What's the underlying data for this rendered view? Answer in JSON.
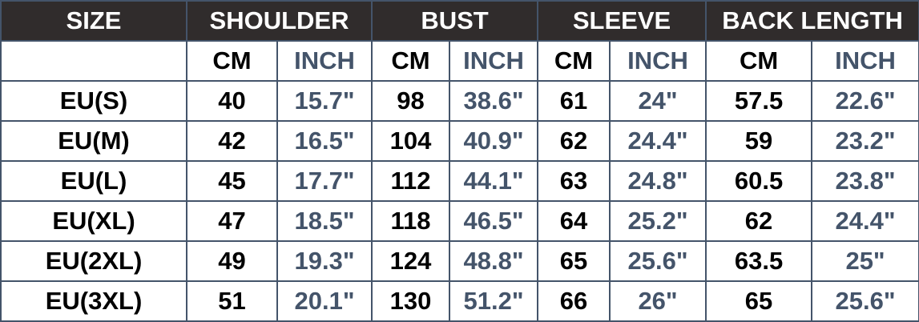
{
  "headers": [
    "SIZE",
    "SHOULDER",
    "BUST",
    "SLEEVE",
    "BACK LENGTH"
  ],
  "unit_labels": {
    "cm": "CM",
    "inch": "INCH"
  },
  "colors": {
    "header_bg": "#302c2c",
    "border": "#44546a",
    "inch_text": "#44546a"
  },
  "rows": [
    {
      "size": "EU(S)",
      "shoulder_cm": "40",
      "shoulder_in": "15.7\"",
      "bust_cm": "98",
      "bust_in": "38.6\"",
      "sleeve_cm": "61",
      "sleeve_in": "24\"",
      "back_cm": "57.5",
      "back_in": "22.6\""
    },
    {
      "size": "EU(M)",
      "shoulder_cm": "42",
      "shoulder_in": "16.5\"",
      "bust_cm": "104",
      "bust_in": "40.9\"",
      "sleeve_cm": "62",
      "sleeve_in": "24.4\"",
      "back_cm": "59",
      "back_in": "23.2\""
    },
    {
      "size": "EU(L)",
      "shoulder_cm": "45",
      "shoulder_in": "17.7\"",
      "bust_cm": "112",
      "bust_in": "44.1\"",
      "sleeve_cm": "63",
      "sleeve_in": "24.8\"",
      "back_cm": "60.5",
      "back_in": "23.8\""
    },
    {
      "size": "EU(XL)",
      "shoulder_cm": "47",
      "shoulder_in": "18.5\"",
      "bust_cm": "118",
      "bust_in": "46.5\"",
      "sleeve_cm": "64",
      "sleeve_in": "25.2\"",
      "back_cm": "62",
      "back_in": "24.4\""
    },
    {
      "size": "EU(2XL)",
      "shoulder_cm": "49",
      "shoulder_in": "19.3\"",
      "bust_cm": "124",
      "bust_in": "48.8\"",
      "sleeve_cm": "65",
      "sleeve_in": "25.6\"",
      "back_cm": "63.5",
      "back_in": "25\""
    },
    {
      "size": "EU(3XL)",
      "shoulder_cm": "51",
      "shoulder_in": "20.1\"",
      "bust_cm": "130",
      "bust_in": "51.2\"",
      "sleeve_cm": "66",
      "sleeve_in": "26\"",
      "back_cm": "65",
      "back_in": "25.6\""
    }
  ]
}
